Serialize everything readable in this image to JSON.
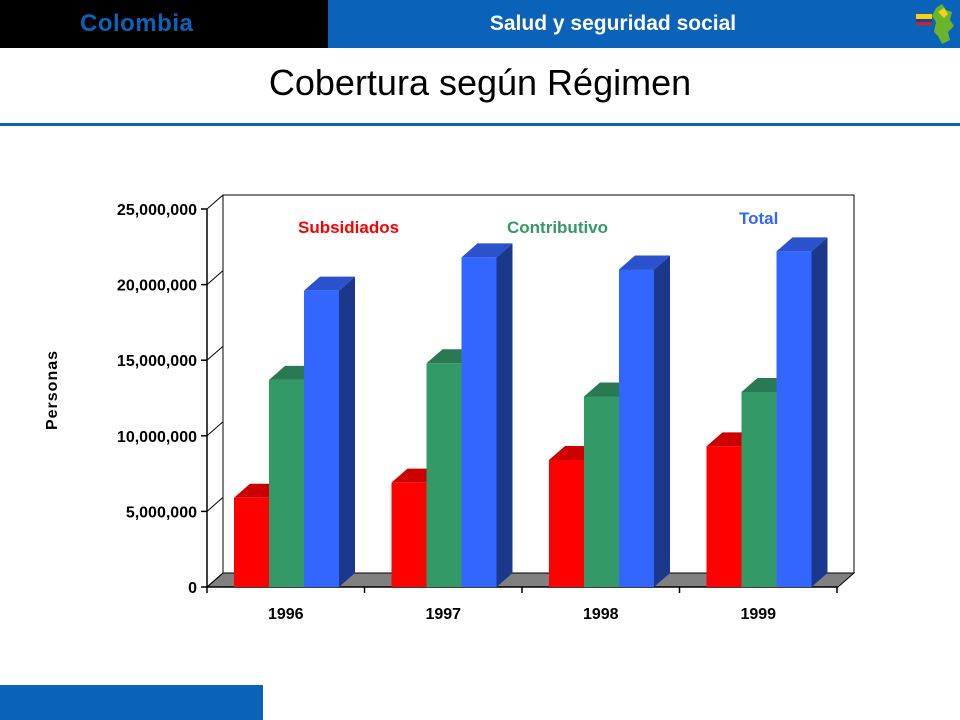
{
  "header": {
    "country": "Colombia",
    "section": "Salud y seguridad social"
  },
  "page": {
    "title": "Cobertura según Régimen"
  },
  "colors": {
    "brand_blue": "#0a63b8",
    "subsidiados": "#ff0000",
    "contributivo": "#339966",
    "total": "#3366ff"
  },
  "chart_data": {
    "type": "bar",
    "title": "",
    "xlabel": "",
    "ylabel": "Personas",
    "ylim": [
      0,
      25000000
    ],
    "yticks": [
      0,
      5000000,
      10000000,
      15000000,
      20000000,
      25000000
    ],
    "ytick_labels": [
      "0",
      "5,000,000",
      "10,000,000",
      "15,000,000",
      "20,000,000",
      "25,000,000"
    ],
    "categories": [
      "1996",
      "1997",
      "1998",
      "1999"
    ],
    "series": [
      {
        "name": "Subsidiados",
        "color": "#ff0000",
        "values": [
          5900000,
          6900000,
          8400000,
          9300000
        ]
      },
      {
        "name": "Contributivo",
        "color": "#339966",
        "values": [
          13700000,
          14800000,
          12600000,
          12900000
        ]
      },
      {
        "name": "Total",
        "color": "#3366ff",
        "values": [
          19600000,
          21800000,
          21000000,
          22200000
        ]
      }
    ],
    "grid": false,
    "three_d": true
  }
}
